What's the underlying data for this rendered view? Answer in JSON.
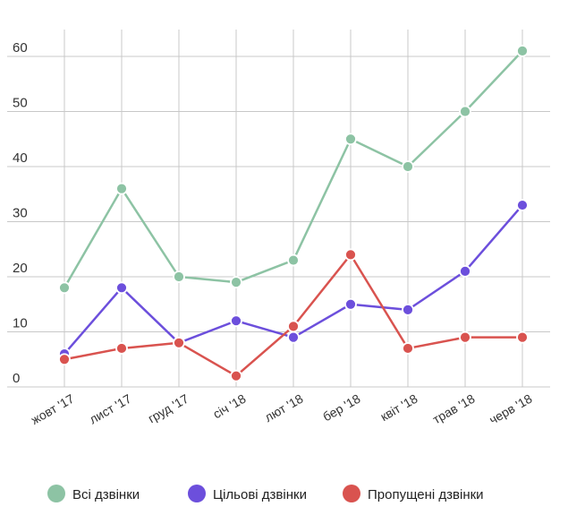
{
  "chart_data": {
    "type": "line",
    "title": "",
    "xlabel": "",
    "ylabel": "",
    "categories": [
      "жовт '17",
      "лист '17",
      "груд '17",
      "січ '18",
      "лют '18",
      "бер '18",
      "квіт '18",
      "трав '18",
      "черв '18"
    ],
    "yticks": [
      0,
      10,
      20,
      30,
      40,
      50,
      60
    ],
    "ylim": [
      0,
      65
    ],
    "grid": true,
    "legend_position": "bottom",
    "series": [
      {
        "name": "Всі дзвінки",
        "color": "#8dc3a4",
        "values": [
          18,
          36,
          20,
          19,
          23,
          45,
          40,
          50,
          61
        ]
      },
      {
        "name": "Цільові дзвінки",
        "color": "#6c4fdc",
        "values": [
          6,
          18,
          8,
          12,
          9,
          15,
          14,
          21,
          33
        ]
      },
      {
        "name": "Пропущені дзвінки",
        "color": "#d9534f",
        "values": [
          5,
          7,
          8,
          2,
          11,
          24,
          7,
          9,
          9
        ]
      }
    ]
  }
}
